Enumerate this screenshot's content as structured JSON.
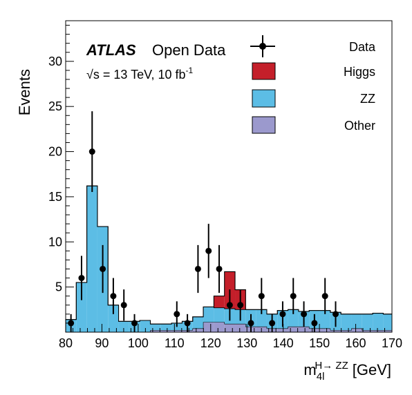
{
  "chart_data": {
    "type": "histogram",
    "xlabel": "m",
    "xlabel_sub": "4l",
    "xlabel_sup": "H→ ZZ",
    "xlabel_unit": "[GeV]",
    "ylabel": "Events",
    "xlim": [
      80,
      170
    ],
    "ylim": [
      0,
      34.5
    ],
    "bin_edges": [
      80.0,
      82.92,
      85.84,
      88.76,
      91.68,
      94.6,
      97.52,
      100.44,
      103.36,
      106.28,
      109.2,
      112.12,
      115.04,
      117.96,
      120.88,
      123.8,
      126.72,
      129.64,
      132.56,
      135.48,
      138.4,
      141.32,
      144.24,
      147.16,
      150.08,
      153.0,
      155.92,
      158.84,
      161.76,
      164.68,
      167.6,
      170.0
    ],
    "x_ticks": [
      80,
      90,
      100,
      110,
      120,
      130,
      140,
      150,
      160,
      170
    ],
    "y_ticks": [
      5,
      10,
      15,
      20,
      25,
      30
    ],
    "stack_order": [
      "Other",
      "ZZ",
      "Higgs"
    ],
    "series": [
      {
        "name": "Other",
        "color": "#9b99cd",
        "values": [
          0,
          0,
          0,
          0,
          0,
          0,
          0,
          0,
          0.2,
          0.2,
          0.2,
          0.2,
          0.4,
          1.1,
          1.1,
          0.9,
          0.9,
          0.6,
          0.6,
          0.4,
          0.4,
          0.6,
          0.6,
          0.4,
          0.4,
          0.2,
          0.2,
          0.4,
          0.2,
          0.2,
          0.2
        ]
      },
      {
        "name": "ZZ",
        "color": "#5cbde5",
        "values": [
          1.4,
          5.5,
          16.2,
          11.7,
          3.0,
          1.2,
          1.2,
          1.3,
          0.7,
          0.7,
          0.8,
          1.0,
          1.3,
          1.7,
          1.6,
          1.7,
          1.6,
          1.9,
          1.9,
          1.6,
          2.0,
          1.9,
          1.7,
          2.0,
          2.0,
          2.0,
          1.8,
          1.6,
          1.8,
          1.9,
          1.8
        ]
      },
      {
        "name": "Higgs",
        "color": "#c41f2a",
        "values": [
          0,
          0,
          0,
          0,
          0,
          0,
          0,
          0,
          0,
          0,
          0,
          0,
          0,
          0,
          1.3,
          4.1,
          2.2,
          0,
          0,
          0,
          0,
          0,
          0,
          0,
          0,
          0,
          0,
          0,
          0,
          0,
          0
        ]
      }
    ],
    "data_points": {
      "name": "Data",
      "x": [
        81.46,
        84.38,
        87.3,
        90.22,
        93.14,
        96.06,
        98.98,
        101.9,
        104.82,
        107.74,
        110.66,
        113.58,
        116.5,
        119.42,
        122.34,
        125.26,
        128.18,
        131.1,
        134.02,
        136.94,
        139.86,
        142.78,
        145.7,
        148.62,
        151.54,
        154.46,
        157.38,
        160.3,
        163.22,
        166.14,
        168.8
      ],
      "y": [
        1,
        6,
        20,
        7,
        4,
        3,
        1,
        0,
        0,
        0,
        2,
        1,
        7,
        9,
        7,
        3,
        3,
        1,
        4,
        1,
        2,
        4,
        2,
        1,
        4,
        2,
        0,
        0,
        0,
        0,
        0
      ]
    },
    "legend": {
      "placement": "top-right",
      "entries": [
        {
          "label": "Data",
          "type": "marker"
        },
        {
          "label": "Higgs",
          "type": "box",
          "color": "#c41f2a"
        },
        {
          "label": "ZZ",
          "type": "box",
          "color": "#5cbde5"
        },
        {
          "label": "Other",
          "type": "box",
          "color": "#9b99cd"
        }
      ]
    },
    "annotations": {
      "atlas": "ATLAS",
      "open_data": "Open Data",
      "energy_prefix": "√s = 13 TeV, 10 fb",
      "energy_sup": "-1"
    }
  }
}
